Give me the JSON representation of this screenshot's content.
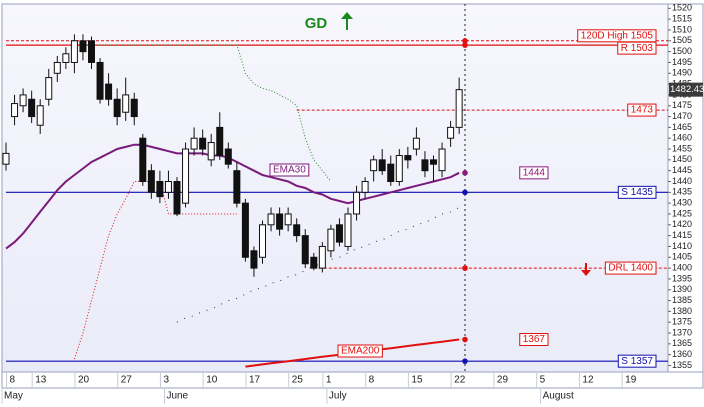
{
  "chart_data": {
    "type": "candlestick",
    "title": "GD",
    "categories": [
      null,
      "8",
      null,
      null,
      "13",
      null,
      null,
      null,
      null,
      "20",
      null,
      null,
      null,
      null,
      "27",
      null,
      null,
      null,
      null,
      "3",
      null,
      null,
      null,
      null,
      "10",
      null,
      null,
      null,
      null,
      "17",
      null,
      null,
      null,
      null,
      "25",
      null,
      null,
      null,
      "1",
      null,
      null,
      null,
      null,
      "8",
      null,
      null,
      null,
      null,
      "15",
      null,
      null,
      null,
      null,
      "22",
      null,
      null,
      null,
      null,
      "29",
      null,
      null,
      null,
      null,
      "5",
      null,
      null,
      null,
      null,
      "12",
      null,
      null,
      null,
      null,
      "19",
      null,
      null,
      null
    ],
    "months": [
      "May",
      "June",
      "July",
      "August"
    ],
    "open": [
      1448,
      1470,
      1475,
      1478,
      1466,
      1478,
      1490,
      1495,
      1495,
      1505,
      1505,
      1495,
      1485,
      1478,
      1472,
      1478,
      1460,
      1445,
      1440,
      1435,
      1440,
      1430,
      1455,
      1460,
      1450,
      1465,
      1455,
      1445,
      1430,
      1408,
      1405,
      1420,
      1425,
      1420,
      1420,
      1415,
      1405,
      1400,
      1408,
      1420,
      1410,
      1425,
      1435,
      1445,
      1450,
      1448,
      1440,
      1452,
      1455,
      1450,
      1450,
      1445,
      1460,
      1465,
      null,
      null,
      null,
      null,
      null,
      null,
      null,
      null,
      null,
      null,
      null,
      null,
      null,
      null,
      null,
      null,
      null,
      null,
      null,
      null,
      null,
      null,
      null
    ],
    "high": [
      1458,
      1480,
      1483,
      1482,
      1478,
      1492,
      1498,
      1502,
      1508,
      1508,
      1507,
      1497,
      1490,
      1483,
      1488,
      1481,
      1462,
      1448,
      1445,
      1445,
      1442,
      1458,
      1465,
      1464,
      1462,
      1472,
      1458,
      1449,
      1432,
      1410,
      1422,
      1428,
      1428,
      1428,
      1423,
      1418,
      1407,
      1412,
      1420,
      1423,
      1428,
      1438,
      1442,
      1452,
      1455,
      1452,
      1455,
      1456,
      1465,
      1454,
      1452,
      1458,
      1468,
      1488,
      null,
      null,
      null,
      null,
      null,
      null,
      null,
      null,
      null,
      null,
      null,
      null,
      null,
      null,
      null,
      null,
      null,
      null,
      null,
      null,
      null,
      null,
      null
    ],
    "low": [
      1445,
      1466,
      1472,
      1467,
      1462,
      1475,
      1486,
      1492,
      1490,
      1496,
      1492,
      1476,
      1475,
      1466,
      1468,
      1466,
      1438,
      1432,
      1430,
      1432,
      1424,
      1428,
      1452,
      1452,
      1447,
      1450,
      1446,
      1428,
      1403,
      1396,
      1402,
      1417,
      1415,
      1417,
      1412,
      1400,
      1399,
      1398,
      1405,
      1410,
      1408,
      1422,
      1432,
      1440,
      1443,
      1438,
      1438,
      1446,
      1452,
      1442,
      1440,
      1442,
      1456,
      1462,
      null,
      null,
      null,
      null,
      null,
      null,
      null,
      null,
      null,
      null,
      null,
      null,
      null,
      null,
      null,
      null,
      null,
      null,
      null,
      null,
      null,
      null,
      null
    ],
    "close": [
      1453,
      1476,
      1480,
      1470,
      1475,
      1488,
      1495,
      1499,
      1505,
      1500,
      1495,
      1478,
      1478,
      1470,
      1480,
      1470,
      1440,
      1435,
      1433,
      1440,
      1425,
      1455,
      1460,
      1455,
      1458,
      1452,
      1448,
      1430,
      1405,
      1400,
      1420,
      1425,
      1418,
      1425,
      1415,
      1402,
      1400,
      1410,
      1418,
      1412,
      1425,
      1435,
      1440,
      1450,
      1445,
      1440,
      1452,
      1450,
      1460,
      1445,
      1448,
      1455,
      1465,
      1482.43,
      null,
      null,
      null,
      null,
      null,
      null,
      null,
      null,
      null,
      null,
      null,
      null,
      null,
      null,
      null,
      null,
      null,
      null,
      null,
      null,
      null,
      null,
      null
    ],
    "last_price": 1482.43,
    "series": [
      {
        "name": "EMA30",
        "color": "#7a1a7a",
        "style": "solid",
        "values": [
          1409,
          1412,
          1416,
          1421,
          1426,
          1431,
          1436,
          1440,
          1443,
          1446,
          1449,
          1451,
          1453,
          1455,
          1456,
          1457,
          1457,
          1456,
          1455,
          1454,
          1453,
          1453,
          1453,
          1453,
          1452,
          1452,
          1451,
          1449,
          1447,
          1445,
          1443,
          1442,
          1441,
          1440,
          1438,
          1437,
          1435,
          1434,
          1432,
          1431,
          1430,
          1431,
          1432,
          1433,
          1434,
          1435,
          1436,
          1437,
          1438,
          1439,
          1440,
          1441,
          1442,
          1444,
          null,
          null,
          null,
          null,
          null,
          null,
          null,
          null,
          null,
          null,
          null,
          null,
          null,
          null,
          null,
          null,
          null,
          null,
          null,
          null,
          null,
          null,
          null
        ]
      },
      {
        "name": "EMA200",
        "color": "#e01010",
        "style": "solid",
        "values": [
          null,
          null,
          null,
          null,
          null,
          null,
          null,
          null,
          null,
          null,
          null,
          null,
          null,
          null,
          null,
          null,
          null,
          null,
          null,
          null,
          null,
          null,
          null,
          null,
          null,
          null,
          null,
          null,
          1354.5,
          1355,
          1355.5,
          1356,
          1356.5,
          1357,
          1357.5,
          1358,
          1358.5,
          1359,
          1359.5,
          1360,
          1360.5,
          1361,
          1361.5,
          1362,
          1362.5,
          1363,
          1363.5,
          1364,
          1364.5,
          1365,
          1365.5,
          1366,
          1366.5,
          1367,
          null,
          null,
          null,
          null,
          null,
          null,
          null,
          null,
          null,
          null,
          null,
          null,
          null,
          null,
          null,
          null,
          null,
          null,
          null,
          null,
          null,
          null,
          null
        ]
      },
      {
        "color": "#2a8a2a",
        "style": "dotted",
        "values": [
          null,
          null,
          null,
          null,
          null,
          null,
          null,
          null,
          null,
          1503,
          1503,
          1503,
          1503,
          1503,
          1503,
          1503,
          1503,
          1503,
          1503,
          1503,
          1503,
          1503,
          1503,
          1503,
          1503,
          1503,
          1503,
          1503,
          1490,
          1485,
          1483,
          1482,
          1480,
          1478,
          1475,
          1460,
          1450,
          1445,
          1440,
          null,
          null,
          null,
          null,
          null,
          null,
          null,
          null,
          null,
          null,
          null,
          null,
          null,
          null,
          null,
          null,
          null,
          null,
          null,
          null,
          null,
          null,
          null,
          null,
          null,
          null,
          null,
          null,
          null,
          null,
          null,
          null,
          null,
          null,
          null,
          null,
          null,
          null
        ]
      },
      {
        "color": "#e01010",
        "style": "dotted",
        "values": [
          null,
          null,
          null,
          null,
          null,
          null,
          null,
          null,
          1358,
          1370,
          1385,
          1400,
          1415,
          1425,
          1432,
          1440,
          1440,
          1440,
          1440,
          1425,
          1425,
          1425,
          1425,
          1425,
          1425,
          1425,
          1425,
          1425,
          null,
          null,
          null,
          null,
          null,
          null,
          null,
          null,
          null,
          null,
          null,
          null,
          null,
          null,
          null,
          null,
          null,
          null,
          null,
          null,
          null,
          null,
          null,
          null,
          null,
          null,
          null,
          null,
          null,
          null,
          null,
          null,
          null,
          null,
          null,
          null,
          null,
          null,
          null,
          null,
          null,
          null,
          null,
          null,
          null,
          null,
          null,
          null,
          null
        ]
      },
      {
        "color": "#333333",
        "style": "dotted",
        "values": [
          null,
          null,
          null,
          null,
          null,
          null,
          null,
          null,
          null,
          null,
          null,
          null,
          null,
          null,
          null,
          null,
          null,
          null,
          null,
          null,
          1375,
          1377,
          1378,
          1380,
          1381,
          1383,
          1385,
          1386,
          1388,
          1390,
          1391,
          1393,
          1394,
          1396,
          1397,
          1399,
          1401,
          1402,
          1404,
          1405,
          1407,
          1409,
          1410,
          1412,
          1413,
          1415,
          1417,
          1418,
          1420,
          1421,
          1423,
          1425,
          1426,
          1428,
          null,
          null,
          null,
          null,
          null,
          null,
          null,
          null,
          null,
          null,
          null,
          null,
          null,
          null,
          null,
          null,
          null,
          null,
          null,
          null,
          null,
          null,
          null
        ]
      }
    ],
    "levels": [
      {
        "label": "120D High 1505",
        "value": 1505,
        "color": "#e01010",
        "style": "dashed",
        "from": 0,
        "marker": true
      },
      {
        "label": "R 1503",
        "value": 1503,
        "color": "#e01010",
        "style": "solid",
        "from": 0,
        "marker": true
      },
      {
        "label": "1473",
        "value": 1473,
        "color": "#e01010",
        "style": "dashed",
        "from": 34,
        "marker": false
      },
      {
        "label": "1444",
        "value": 1444,
        "color": "#8b1a7a",
        "style": "none",
        "marker": true
      },
      {
        "label": "S 1435",
        "value": 1435,
        "color": "#1010b0",
        "style": "solid",
        "from": 0,
        "marker": true
      },
      {
        "label": "DRL 1400",
        "value": 1400,
        "color": "#e01010",
        "style": "dashed",
        "from": 36,
        "marker": true
      },
      {
        "label": "1367",
        "value": 1367,
        "color": "#e01010",
        "style": "none",
        "marker": true
      },
      {
        "label": "S 1357",
        "value": 1357,
        "color": "#1010b0",
        "style": "solid",
        "from": 0,
        "marker": true
      }
    ],
    "ylim": [
      1352,
      1522
    ],
    "yticks": [
      1355,
      1360,
      1365,
      1370,
      1375,
      1380,
      1385,
      1390,
      1395,
      1400,
      1405,
      1410,
      1415,
      1420,
      1425,
      1430,
      1435,
      1440,
      1445,
      1450,
      1455,
      1460,
      1465,
      1470,
      1475,
      1480,
      1485,
      1490,
      1495,
      1500,
      1505,
      1510,
      1515,
      1520
    ]
  }
}
